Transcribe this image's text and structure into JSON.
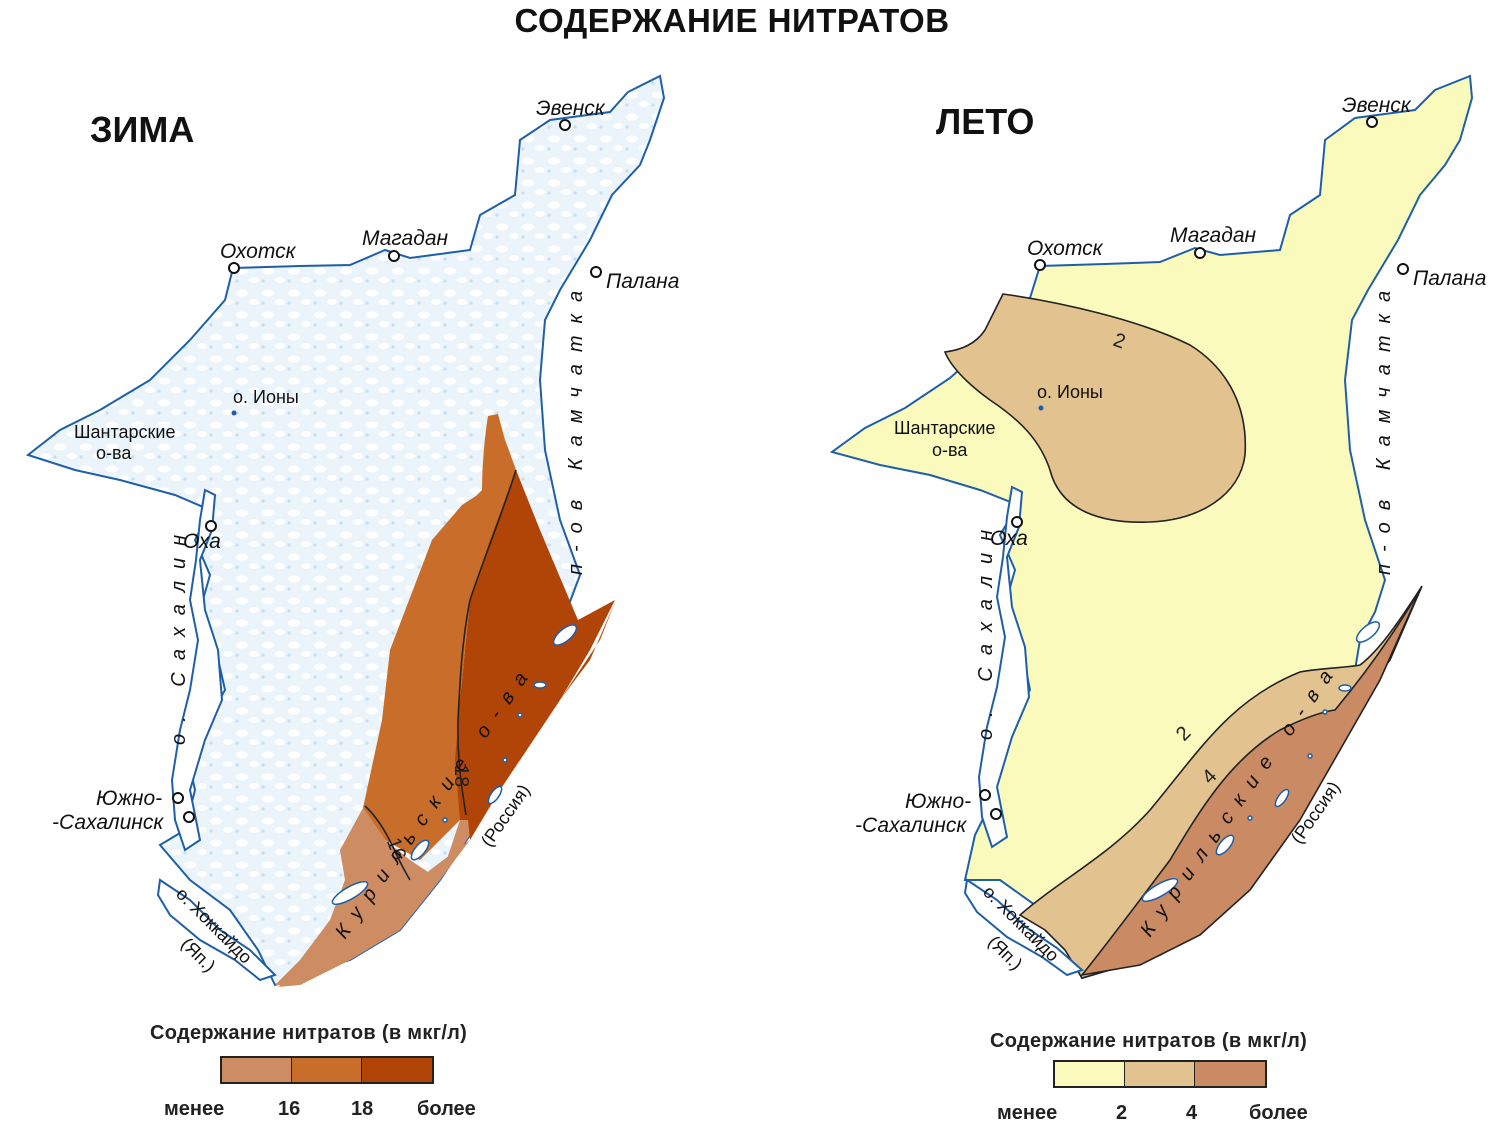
{
  "title": "СОДЕРЖАНИЕ НИТРАТОВ",
  "colors": {
    "ice": "#eaf4fa",
    "coast": "#1f5fa8",
    "winter_low": "#cd8c62",
    "winter_mid": "#c96e2a",
    "winter_high": "#b14508",
    "summer_low": "#fafabd",
    "summer_mid": "#e2c28e",
    "summer_high": "#c98a64"
  },
  "winter": {
    "season": "ЗИМА",
    "cities": {
      "evensk": "Эвенск",
      "okhotsk": "Охотск",
      "magadan": "Магадан",
      "palana": "Палана",
      "okha": "Оха",
      "yuzhno1": "Южно-",
      "yuzhno2": "-Сахалинск"
    },
    "places": {
      "iony": "о. Ионы",
      "shantar1": "Шантарские",
      "shantar2": "о-ва",
      "hokkaido1": "о. Хоккайдо",
      "hokkaido2": "(Яп.)",
      "russia": "(Россия)"
    },
    "regions": {
      "sakhalin": "о. Сахалин",
      "kamchatka": "п-ов Камчатка",
      "kurils": "Курильские о-ва"
    },
    "isolines": [
      "16",
      "18"
    ],
    "legend": {
      "title": "Содержание нитратов  (в мкг/л)",
      "less": "менее",
      "t1": "16",
      "t2": "18",
      "more": "более"
    }
  },
  "summer": {
    "season": "ЛЕТО",
    "cities": {
      "evensk": "Эвенск",
      "okhotsk": "Охотск",
      "magadan": "Магадан",
      "palana": "Палана",
      "okha": "Оха",
      "yuzhno1": "Южно-",
      "yuzhno2": "-Сахалинск"
    },
    "places": {
      "iony": "о. Ионы",
      "shantar1": "Шантарские",
      "shantar2": "о-ва",
      "hokkaido1": "о. Хоккайдо",
      "hokkaido2": "(Яп.)",
      "russia": "(Россия)"
    },
    "regions": {
      "sakhalin": "о. Сахалин",
      "kamchatka": "п-ов Камчатка",
      "kurils": "Курильские о-ва"
    },
    "isolines": [
      "2",
      "2",
      "4"
    ],
    "legend": {
      "title": "Содержание нитратов  (в мкг/л)",
      "less": "менее",
      "t1": "2",
      "t2": "4",
      "more": "более"
    }
  }
}
